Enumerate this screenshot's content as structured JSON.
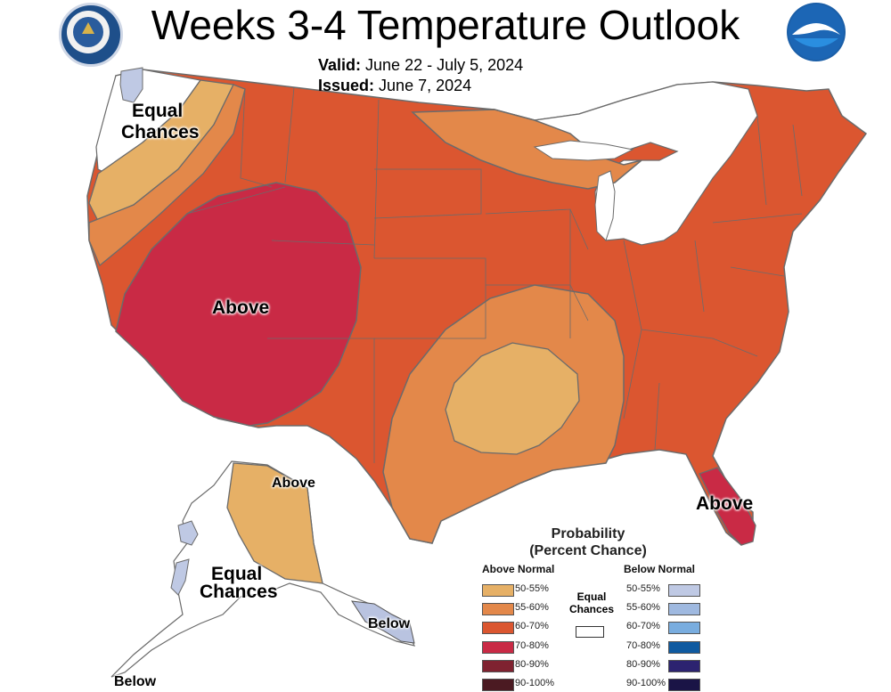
{
  "header": {
    "title": "Weeks 3-4 Temperature Outlook",
    "valid_label": "Valid:",
    "valid_dates": "June 22 - July 5, 2024",
    "issued_label": "Issued:",
    "issued_date": "June 7, 2024"
  },
  "logos": {
    "left": "commerce-seal-icon",
    "right": "noaa-logo-icon"
  },
  "map_labels": {
    "equal_chances_nw_1": "Equal",
    "equal_chances_nw_2": "Chances",
    "above_west": "Above",
    "above_florida": "Above",
    "above_alaska": "Above",
    "equal_chances_ak_1": "Equal",
    "equal_chances_ak_2": "Chances",
    "below_ak_se": "Below",
    "below_ak_sw": "Below"
  },
  "legend": {
    "title_1": "Probability",
    "title_2": "(Percent Chance)",
    "above_header": "Above Normal",
    "below_header": "Below Normal",
    "equal_chances_1": "Equal",
    "equal_chances_2": "Chances",
    "above": [
      {
        "label": "50-55%",
        "color": "#e6b066"
      },
      {
        "label": "55-60%",
        "color": "#e3884a"
      },
      {
        "label": "60-70%",
        "color": "#db5630"
      },
      {
        "label": "70-80%",
        "color": "#c92a45"
      },
      {
        "label": "80-90%",
        "color": "#7f2230"
      },
      {
        "label": "90-100%",
        "color": "#4b1a22"
      }
    ],
    "below": [
      {
        "label": "50-55%",
        "color": "#bfc9e4"
      },
      {
        "label": "55-60%",
        "color": "#9fb9e0"
      },
      {
        "label": "60-70%",
        "color": "#79addf"
      },
      {
        "label": "70-80%",
        "color": "#0f5aa0"
      },
      {
        "label": "80-90%",
        "color": "#2c2370"
      },
      {
        "label": "90-100%",
        "color": "#1a1446"
      }
    ]
  }
}
